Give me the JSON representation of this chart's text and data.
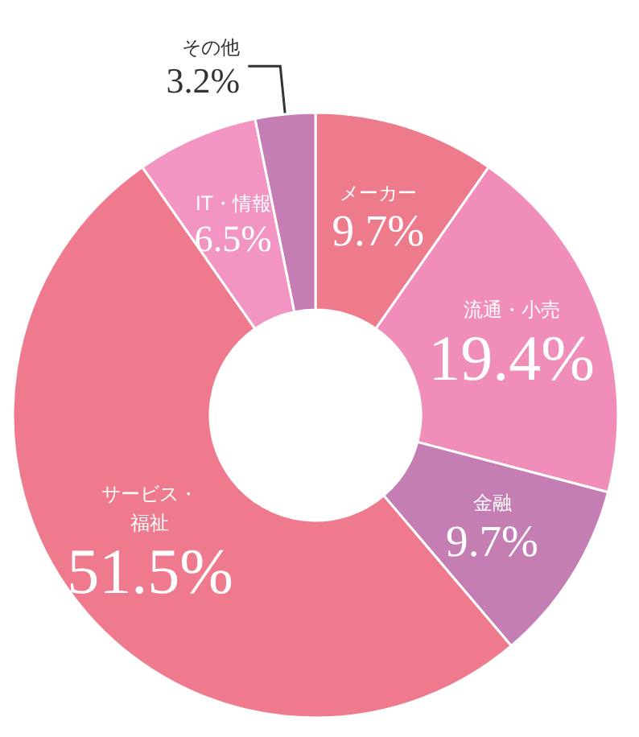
{
  "chart_data": {
    "type": "donut",
    "categories": [
      "メーカー",
      "流通・小売",
      "金融",
      "サービス・福祉",
      "IT・情報",
      "その他"
    ],
    "values": [
      9.7,
      19.4,
      9.7,
      51.5,
      6.5,
      3.2
    ],
    "colors": [
      "#ee7b8c",
      "#f08db9",
      "#c47eb3",
      "#ef7a8d",
      "#f295c3",
      "#c47eb3"
    ],
    "value_labels": [
      "9.7%",
      "19.4%",
      "9.7%",
      "51.5%",
      "6.5%",
      "3.2%"
    ],
    "legend": false
  }
}
